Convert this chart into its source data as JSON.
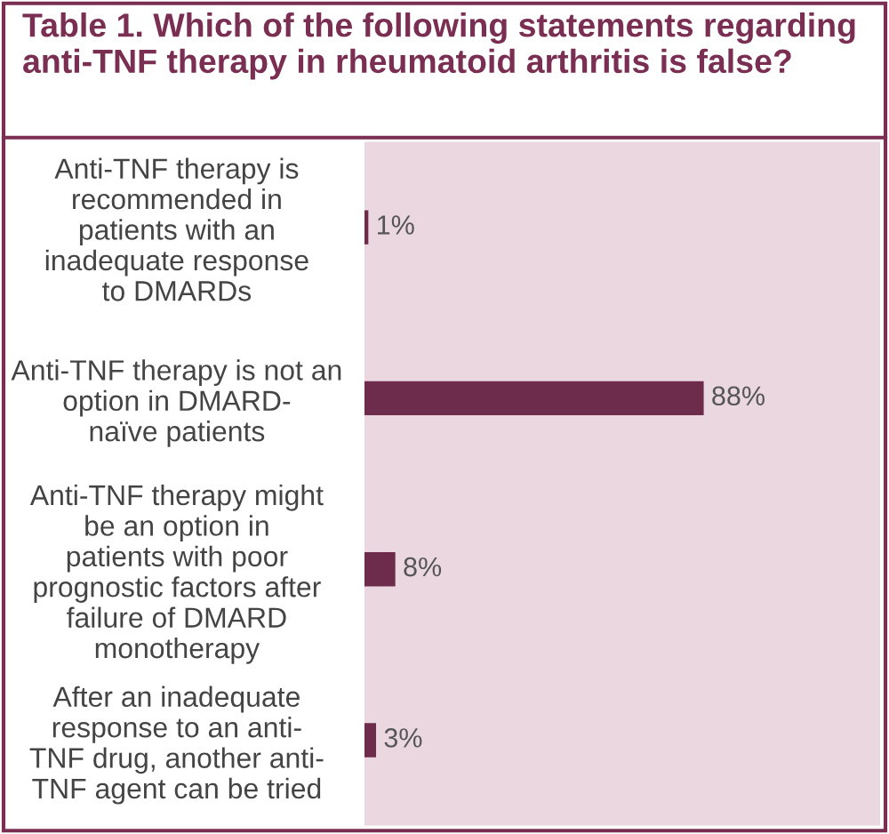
{
  "chart_data": {
    "type": "bar",
    "orientation": "horizontal",
    "title": "Table 1. Which of the following statements regarding anti-TNF therapy in rheumatoid arthritis is false?",
    "categories": [
      "Anti-TNF therapy is\nrecommended in\npatients with an\ninadequate response\nto DMARDs",
      "Anti-TNF therapy is not an\noption in DMARD-\nnaïve patients",
      "Anti-TNF therapy might\nbe an option in\npatients with poor\nprognostic factors after\nfailure of DMARD\nmonotherapy",
      "After an inadequate\nresponse to an anti-\nTNF drug, another anti-\nTNF agent can be tried"
    ],
    "values": [
      1,
      88,
      8,
      3
    ],
    "value_labels": [
      "1%",
      "88%",
      "8%",
      "3%"
    ],
    "color": "#6e2c4c"
  }
}
